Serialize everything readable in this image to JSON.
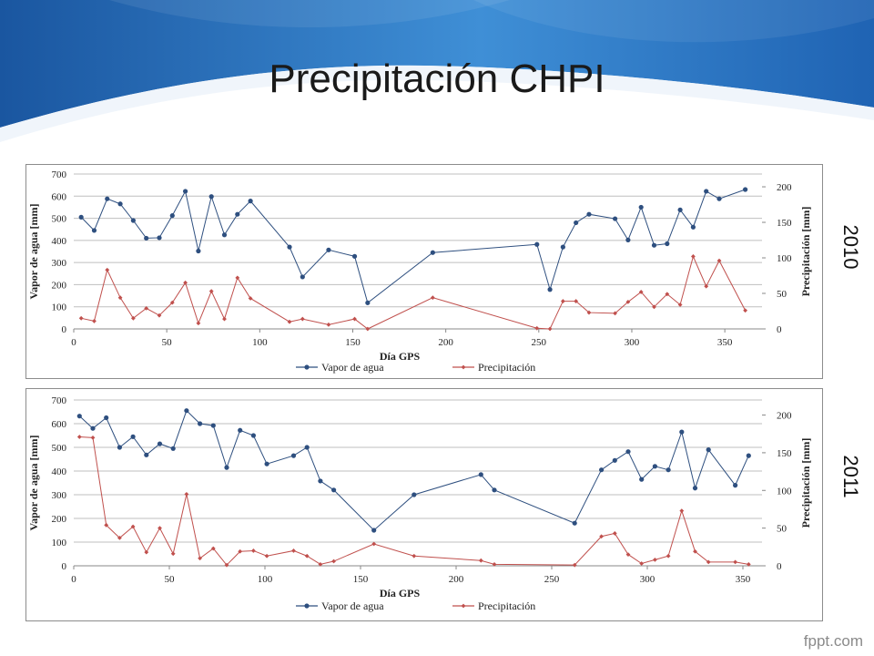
{
  "slide": {
    "title": "Precipitación CHPI",
    "brand": "fppt.com",
    "accent_color": "#1d5fa8"
  },
  "chart_data": [
    {
      "type": "line",
      "label": "2010",
      "xlabel": "Día GPS",
      "ylabel": "Vapor de agua [mm]",
      "y2label": "Precipitación [mm]",
      "xlim": [
        0,
        370
      ],
      "xticks": [
        0,
        50,
        100,
        150,
        200,
        250,
        300,
        350
      ],
      "ylim": [
        0,
        700
      ],
      "yticks": [
        0,
        100,
        200,
        300,
        400,
        500,
        600,
        700
      ],
      "y2lim": [
        0,
        218
      ],
      "y2ticks": [
        0,
        50,
        100,
        150,
        200
      ],
      "grid": "horizontal",
      "legend": "bottom",
      "series": [
        {
          "name": "Vapor de agua",
          "axis": "left",
          "color": "#2e4f7f",
          "marker": "circle",
          "x": [
            4,
            11,
            18,
            25,
            32,
            39,
            46,
            53,
            60,
            67,
            74,
            81,
            88,
            95,
            116,
            123,
            137,
            151,
            158,
            193,
            249,
            256,
            263,
            270,
            277,
            291,
            298,
            305,
            312,
            319,
            326,
            333,
            340,
            347,
            361
          ],
          "y": [
            505,
            445,
            588,
            565,
            490,
            410,
            412,
            512,
            622,
            352,
            598,
            425,
            518,
            578,
            370,
            235,
            357,
            328,
            118,
            345,
            382,
            178,
            370,
            480,
            518,
            498,
            402,
            550,
            378,
            385,
            538,
            460,
            622,
            588,
            630
          ]
        },
        {
          "name": "Precipitación",
          "axis": "right",
          "color": "#c0504d",
          "marker": "diamond",
          "x": [
            4,
            11,
            18,
            25,
            32,
            39,
            46,
            53,
            60,
            67,
            74,
            81,
            88,
            95,
            116,
            123,
            137,
            151,
            158,
            193,
            249,
            256,
            263,
            270,
            277,
            291,
            298,
            305,
            312,
            319,
            326,
            333,
            340,
            347,
            361
          ],
          "y": [
            15,
            11,
            83,
            44,
            15,
            29,
            19,
            37,
            65,
            8,
            53,
            14,
            72,
            43,
            10,
            14,
            6,
            14,
            0,
            44,
            1,
            0,
            39,
            39,
            23,
            22,
            38,
            52,
            31,
            49,
            34,
            102,
            60,
            96,
            26
          ]
        }
      ]
    },
    {
      "type": "line",
      "label": "2011",
      "xlabel": "Día GPS",
      "ylabel": "Vapor de agua [mm]",
      "y2label": "Precipitación [mm]",
      "xlim": [
        0,
        360
      ],
      "xticks": [
        0,
        50,
        100,
        150,
        200,
        250,
        300,
        350
      ],
      "ylim": [
        0,
        700
      ],
      "yticks": [
        0,
        100,
        200,
        300,
        400,
        500,
        600,
        700
      ],
      "y2lim": [
        0,
        220
      ],
      "y2ticks": [
        0,
        50,
        100,
        150,
        200
      ],
      "grid": "horizontal",
      "legend": "bottom",
      "series": [
        {
          "name": "Vapor de agua",
          "axis": "left",
          "color": "#2e4f7f",
          "marker": "circle",
          "x": [
            3,
            10,
            17,
            24,
            31,
            38,
            45,
            52,
            59,
            66,
            73,
            80,
            87,
            94,
            101,
            115,
            122,
            129,
            136,
            157,
            178,
            213,
            220,
            262,
            276,
            283,
            290,
            297,
            304,
            311,
            318,
            325,
            332,
            346,
            353
          ],
          "y": [
            632,
            580,
            625,
            500,
            545,
            468,
            515,
            495,
            655,
            600,
            592,
            415,
            572,
            550,
            430,
            465,
            500,
            358,
            320,
            150,
            300,
            385,
            320,
            180,
            405,
            445,
            482,
            365,
            420,
            405,
            565,
            328,
            490,
            340,
            465
          ]
        },
        {
          "name": "Precipitación",
          "axis": "right",
          "color": "#c0504d",
          "marker": "diamond",
          "x": [
            3,
            10,
            17,
            24,
            31,
            38,
            45,
            52,
            59,
            66,
            73,
            80,
            87,
            94,
            101,
            115,
            122,
            129,
            136,
            157,
            178,
            213,
            220,
            262,
            276,
            283,
            290,
            297,
            304,
            311,
            318,
            325,
            332,
            346,
            353
          ],
          "y": [
            171,
            170,
            54,
            37,
            52,
            18,
            50,
            16,
            95,
            10,
            23,
            1,
            19,
            20,
            13,
            20,
            13,
            2,
            6,
            29,
            13,
            7,
            2,
            1,
            39,
            43,
            15,
            3,
            8,
            13,
            73,
            19,
            5,
            5,
            2
          ]
        }
      ]
    }
  ]
}
